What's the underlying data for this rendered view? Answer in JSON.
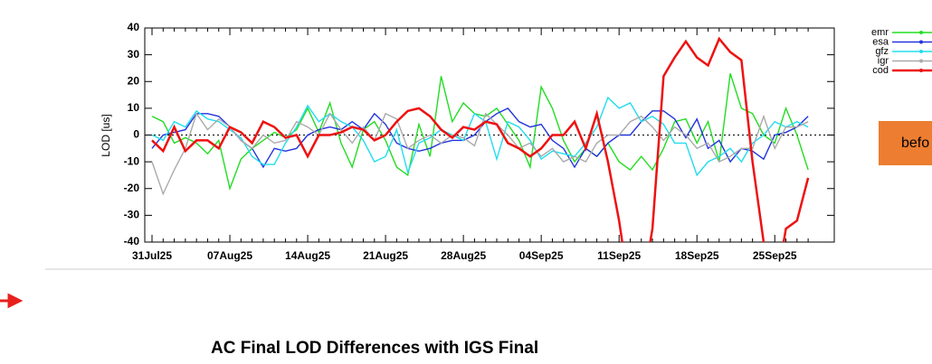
{
  "chart_data": {
    "type": "line",
    "title": "AC Final LOD Differences with IGS Final",
    "ylabel": "LOD [us]",
    "button": "befo",
    "categories": [
      "31Jul25",
      null,
      null,
      null,
      null,
      null,
      null,
      "07Aug25",
      null,
      null,
      null,
      null,
      null,
      null,
      "14Aug25",
      null,
      null,
      null,
      null,
      null,
      null,
      "21Aug25",
      null,
      null,
      null,
      null,
      null,
      null,
      "28Aug25",
      null,
      null,
      null,
      null,
      null,
      null,
      "04Sep25",
      null,
      null,
      null,
      null,
      null,
      null,
      "11Sep25",
      null,
      null,
      null,
      null,
      null,
      null,
      "18Sep25",
      null,
      null,
      null,
      null,
      null,
      null,
      "25Sep25",
      null,
      null,
      null
    ],
    "series": [
      {
        "name": "emr",
        "color": "#22dd22",
        "values": [
          7,
          5,
          -3,
          -1,
          -3,
          -7,
          -2,
          -20,
          -9,
          -5,
          -2,
          1,
          -1,
          2,
          10,
          1,
          12,
          -3,
          -12,
          2,
          5,
          -2,
          -12,
          -15,
          4,
          -8,
          22,
          5,
          12,
          8,
          7,
          10,
          4,
          -2,
          -12,
          18,
          10,
          -2,
          -10,
          -5,
          -8,
          -3,
          -10,
          -13,
          -8,
          -13,
          -5,
          5,
          6,
          -3,
          5,
          -10,
          23,
          10,
          8,
          0,
          -3,
          10,
          0,
          -13
        ]
      },
      {
        "name": "esa",
        "color": "#2233dd",
        "values": [
          -5,
          0,
          1,
          2,
          8,
          8,
          7,
          3,
          -2,
          -5,
          -12,
          -5,
          -6,
          -5,
          0,
          2,
          3,
          2,
          5,
          2,
          8,
          4,
          -3,
          -5,
          -6,
          -5,
          -3,
          -2,
          -2,
          0,
          5,
          8,
          10,
          5,
          3,
          4,
          -2,
          -5,
          -12,
          -5,
          -8,
          -3,
          0,
          0,
          5,
          9,
          9,
          6,
          -1,
          6,
          -5,
          -2,
          -10,
          -5,
          -6,
          -9,
          0,
          1,
          3,
          7
        ]
      },
      {
        "name": "gfz",
        "color": "#22ddee",
        "values": [
          0,
          -2,
          5,
          3,
          9,
          6,
          5,
          2,
          -1,
          -8,
          -11,
          -11,
          -3,
          3,
          11,
          5,
          8,
          5,
          3,
          -2,
          -10,
          -8,
          2,
          -14,
          -3,
          -1,
          2,
          0,
          -2,
          8,
          5,
          -9,
          5,
          3,
          -2,
          -9,
          -6,
          -7,
          -8,
          -3,
          3,
          14,
          10,
          12,
          5,
          7,
          4,
          -3,
          -3,
          -15,
          -10,
          -8,
          -5,
          -10,
          -3,
          0,
          5,
          3,
          5,
          3
        ]
      },
      {
        "name": "igr",
        "color": "#aaaaaa",
        "values": [
          -10,
          -22,
          -13,
          -5,
          8,
          2,
          6,
          3,
          -2,
          -5,
          0,
          -3,
          -2,
          5,
          3,
          0,
          8,
          2,
          -3,
          3,
          -2,
          8,
          6,
          -5,
          -2,
          0,
          -3,
          0,
          -1,
          -4,
          8,
          4,
          0,
          -5,
          -3,
          -8,
          -5,
          -10,
          -8,
          -10,
          -3,
          0,
          0,
          5,
          7,
          3,
          -2,
          3,
          0,
          -5,
          -3,
          -10,
          -8,
          -5,
          -5,
          7,
          -5,
          3,
          3,
          5
        ]
      },
      {
        "name": "cod",
        "color": "#ee1111",
        "values": [
          -2,
          -6,
          3,
          -6,
          -2,
          -2,
          -5,
          3,
          1,
          -3,
          5,
          3,
          -1,
          0,
          -8,
          0,
          0,
          1,
          3,
          2,
          -2,
          0,
          5,
          9,
          10,
          7,
          2,
          -1,
          3,
          2,
          5,
          4,
          -3,
          -5,
          -8,
          -5,
          0,
          0,
          5,
          -5,
          8,
          -10,
          -32,
          -60,
          -60,
          -35,
          22,
          29,
          35,
          29,
          26,
          36,
          31,
          28,
          -10,
          -40,
          -60,
          -35,
          -32,
          -16
        ]
      }
    ],
    "ylim": [
      -40,
      40
    ],
    "yticks": [
      -40,
      -30,
      -20,
      -10,
      0,
      10,
      20,
      30,
      40
    ]
  }
}
